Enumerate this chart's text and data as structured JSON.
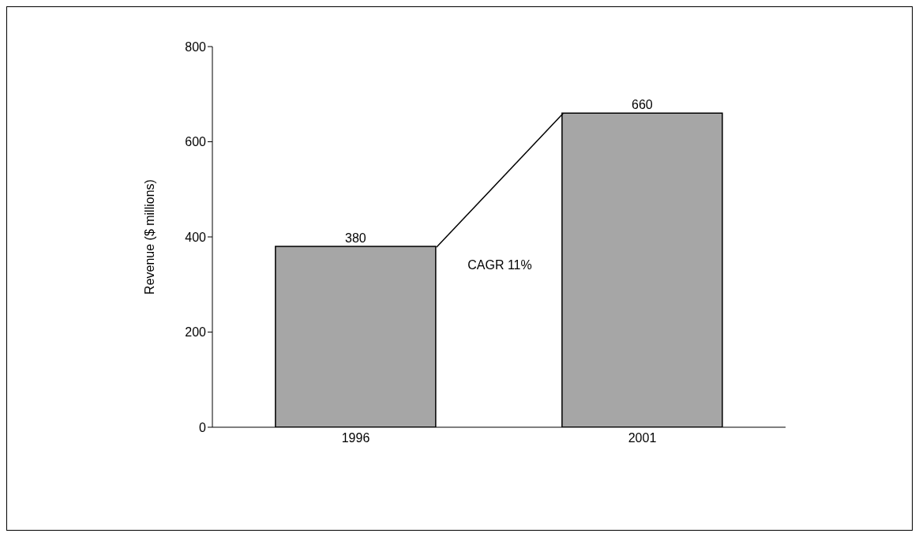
{
  "chart_data": {
    "type": "bar",
    "categories": [
      "1996",
      "2001"
    ],
    "values": [
      380,
      660
    ],
    "color": "#a6a6a6",
    "ylabel": "Revenue ($ millions)",
    "ylim": [
      0,
      800
    ],
    "yticks": [
      0,
      200,
      400,
      600,
      800
    ],
    "data_labels": true,
    "annotations": [
      "CAGR 11%"
    ]
  }
}
